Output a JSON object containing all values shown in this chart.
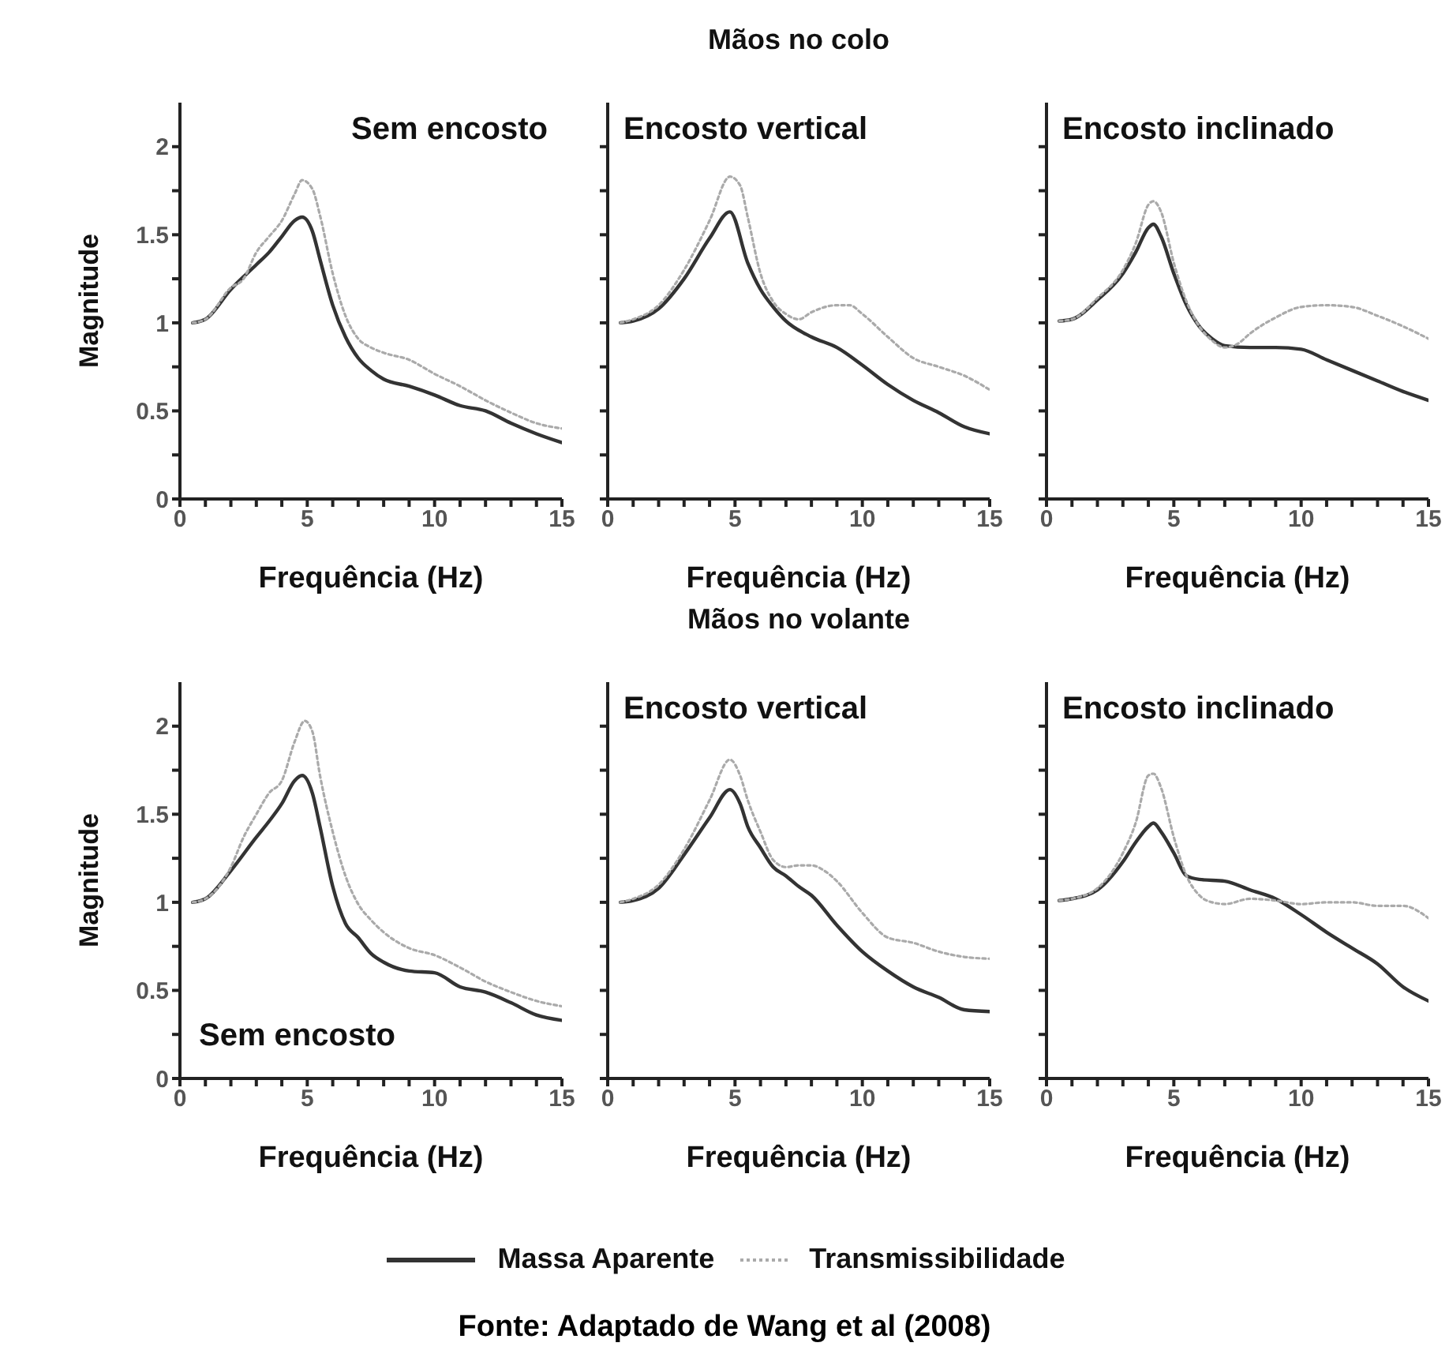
{
  "chart_data": [
    {
      "type": "line",
      "title": "Sem encosto",
      "xlabel": "Frequência (Hz)",
      "ylabel": "Magnitude",
      "xlim": [
        0,
        15
      ],
      "ylim": [
        0,
        2.25
      ],
      "legend": "bottom",
      "xticks": [
        0,
        {
          "value": 1,
          "label": null
        },
        {
          "value": 2,
          "label": null
        },
        {
          "value": 3,
          "label": null
        },
        {
          "value": 4,
          "label": null
        },
        5,
        {
          "value": 6,
          "label": null
        },
        {
          "value": 7,
          "label": null
        },
        {
          "value": 8,
          "label": null
        },
        {
          "value": 9,
          "label": null
        },
        10,
        {
          "value": 11,
          "label": null
        },
        {
          "value": 12,
          "label": null
        },
        {
          "value": 13,
          "label": null
        },
        {
          "value": 14,
          "label": null
        },
        15
      ],
      "yticks": [
        0,
        {
          "value": 0.25,
          "label": null
        },
        0.5,
        {
          "value": 0.75,
          "label": null
        },
        1,
        {
          "value": 1.25,
          "label": null
        },
        1.5,
        {
          "value": 1.75,
          "label": null
        },
        2
      ],
      "series": [
        {
          "name": "Massa Aparente",
          "color": "#333333",
          "line_style": "solid",
          "x": [
            0.5,
            1,
            2,
            3,
            3.5,
            4,
            4.5,
            4.8,
            5.2,
            5.5,
            6,
            6.5,
            7,
            7.5,
            8,
            9,
            10,
            11,
            12,
            13,
            14,
            15
          ],
          "values": [
            1.0,
            1.02,
            1.19,
            1.33,
            1.4,
            1.49,
            1.58,
            1.6,
            1.52,
            1.36,
            1.1,
            0.92,
            0.8,
            0.73,
            0.68,
            0.64,
            0.59,
            0.53,
            0.5,
            0.43,
            0.37,
            0.32
          ]
        },
        {
          "name": "Transmissibilidade",
          "color": "#aaaaaa",
          "line_style": "dotted",
          "x": [
            0.5,
            1,
            2,
            2.5,
            3,
            3.5,
            4,
            4.5,
            4.8,
            5.2,
            5.5,
            6,
            6.5,
            7,
            7.5,
            8,
            9,
            10,
            11,
            12,
            13,
            14,
            15
          ],
          "values": [
            1.0,
            1.02,
            1.2,
            1.25,
            1.4,
            1.49,
            1.58,
            1.73,
            1.81,
            1.76,
            1.61,
            1.28,
            1.04,
            0.91,
            0.86,
            0.83,
            0.79,
            0.71,
            0.64,
            0.56,
            0.49,
            0.43,
            0.4
          ]
        }
      ]
    },
    {
      "type": "line",
      "title": "Encosto vertical",
      "subtitle": "Mãos no colo",
      "xlabel": "Frequência (Hz)",
      "xlim": [
        0,
        15
      ],
      "ylim": [
        0,
        2.25
      ],
      "tick_labels": "x",
      "xticks": [
        0,
        {
          "value": 1,
          "label": null
        },
        {
          "value": 2,
          "label": null
        },
        {
          "value": 3,
          "label": null
        },
        {
          "value": 4,
          "label": null
        },
        5,
        {
          "value": 6,
          "label": null
        },
        {
          "value": 7,
          "label": null
        },
        {
          "value": 8,
          "label": null
        },
        {
          "value": 9,
          "label": null
        },
        10,
        {
          "value": 11,
          "label": null
        },
        {
          "value": 12,
          "label": null
        },
        {
          "value": 13,
          "label": null
        },
        {
          "value": 14,
          "label": null
        },
        15
      ],
      "yticks": [
        0,
        {
          "value": 0.25,
          "label": null
        },
        0.5,
        {
          "value": 0.75,
          "label": null
        },
        1,
        {
          "value": 1.25,
          "label": null
        },
        1.5,
        {
          "value": 1.75,
          "label": null
        },
        2
      ],
      "series": [
        {
          "color": "#333333",
          "line_style": "solid",
          "x": [
            0.5,
            1,
            2,
            3,
            4,
            4.8,
            5.5,
            6,
            6.5,
            7,
            8,
            9,
            10,
            11,
            12,
            13,
            14,
            15
          ],
          "values": [
            1.0,
            1.01,
            1.08,
            1.25,
            1.48,
            1.63,
            1.34,
            1.19,
            1.09,
            1.01,
            0.92,
            0.86,
            0.76,
            0.65,
            0.56,
            0.49,
            0.41,
            0.37
          ]
        },
        {
          "color": "#aaaaaa",
          "line_style": "dotted",
          "x": [
            0.5,
            1,
            2,
            3,
            4,
            4.8,
            5.2,
            5.5,
            6,
            6.5,
            7,
            7.5,
            8,
            9,
            9.5,
            10,
            11,
            12,
            13,
            14,
            15
          ],
          "values": [
            1.0,
            1.02,
            1.1,
            1.3,
            1.58,
            1.83,
            1.78,
            1.6,
            1.28,
            1.12,
            1.05,
            1.02,
            1.06,
            1.1,
            1.1,
            1.05,
            0.92,
            0.8,
            0.75,
            0.7,
            0.62
          ]
        }
      ]
    },
    {
      "type": "line",
      "title": "Encosto inclinado",
      "xlabel": "Frequência (Hz)",
      "xlim": [
        0,
        15
      ],
      "ylim": [
        0,
        2.25
      ],
      "tick_labels": "x",
      "xticks": [
        0,
        {
          "value": 1,
          "label": null
        },
        {
          "value": 2,
          "label": null
        },
        {
          "value": 3,
          "label": null
        },
        {
          "value": 4,
          "label": null
        },
        5,
        {
          "value": 6,
          "label": null
        },
        {
          "value": 7,
          "label": null
        },
        {
          "value": 8,
          "label": null
        },
        {
          "value": 9,
          "label": null
        },
        10,
        {
          "value": 11,
          "label": null
        },
        {
          "value": 12,
          "label": null
        },
        {
          "value": 13,
          "label": null
        },
        {
          "value": 14,
          "label": null
        },
        15
      ],
      "yticks": [
        0,
        {
          "value": 0.25,
          "label": null
        },
        0.5,
        {
          "value": 0.75,
          "label": null
        },
        1,
        {
          "value": 1.25,
          "label": null
        },
        1.5,
        {
          "value": 1.75,
          "label": null
        },
        2
      ],
      "series": [
        {
          "color": "#333333",
          "line_style": "solid",
          "x": [
            0.5,
            1,
            2,
            3,
            3.5,
            4,
            4.2,
            4.5,
            5,
            5.5,
            6,
            6.5,
            7,
            8,
            9,
            10,
            11,
            12,
            13,
            14,
            15
          ],
          "values": [
            1.01,
            1.02,
            1.13,
            1.28,
            1.4,
            1.54,
            1.56,
            1.49,
            1.28,
            1.1,
            0.98,
            0.91,
            0.87,
            0.86,
            0.86,
            0.85,
            0.79,
            0.73,
            0.67,
            0.61,
            0.56
          ]
        },
        {
          "color": "#aaaaaa",
          "line_style": "dotted",
          "x": [
            0.5,
            1,
            2,
            3,
            3.5,
            4,
            4.2,
            4.5,
            5,
            5.5,
            6,
            6.5,
            7,
            7.5,
            8,
            9,
            10,
            11,
            12,
            13,
            14,
            15
          ],
          "values": [
            1.01,
            1.02,
            1.14,
            1.3,
            1.45,
            1.67,
            1.69,
            1.63,
            1.34,
            1.12,
            0.98,
            0.9,
            0.86,
            0.88,
            0.94,
            1.03,
            1.09,
            1.1,
            1.09,
            1.04,
            0.98,
            0.91
          ]
        }
      ]
    },
    {
      "type": "line",
      "title": "Sem encosto",
      "xlabel": "Frequência (Hz)",
      "ylabel": "Magnitude",
      "xlim": [
        0,
        15
      ],
      "ylim": [
        0,
        2.25
      ],
      "xticks": [
        0,
        {
          "value": 1,
          "label": null
        },
        {
          "value": 2,
          "label": null
        },
        {
          "value": 3,
          "label": null
        },
        {
          "value": 4,
          "label": null
        },
        5,
        {
          "value": 6,
          "label": null
        },
        {
          "value": 7,
          "label": null
        },
        {
          "value": 8,
          "label": null
        },
        {
          "value": 9,
          "label": null
        },
        10,
        {
          "value": 11,
          "label": null
        },
        {
          "value": 12,
          "label": null
        },
        {
          "value": 13,
          "label": null
        },
        {
          "value": 14,
          "label": null
        },
        15
      ],
      "yticks": [
        0,
        {
          "value": 0.25,
          "label": null
        },
        0.5,
        {
          "value": 0.75,
          "label": null
        },
        1,
        {
          "value": 1.25,
          "label": null
        },
        1.5,
        {
          "value": 1.75,
          "label": null
        },
        2
      ],
      "series": [
        {
          "color": "#333333",
          "line_style": "solid",
          "x": [
            0.5,
            1,
            2,
            3,
            3.5,
            4,
            4.5,
            4.8,
            5.2,
            5.5,
            6,
            6.5,
            7,
            7.5,
            8,
            9,
            10,
            11,
            12,
            13,
            14,
            15
          ],
          "values": [
            1.0,
            1.02,
            1.18,
            1.37,
            1.46,
            1.56,
            1.69,
            1.72,
            1.62,
            1.43,
            1.09,
            0.88,
            0.8,
            0.71,
            0.66,
            0.61,
            0.6,
            0.52,
            0.49,
            0.43,
            0.36,
            0.33
          ]
        },
        {
          "color": "#aaaaaa",
          "line_style": "dotted",
          "x": [
            0.5,
            1,
            2,
            2.5,
            3,
            3.5,
            4,
            4.5,
            4.9,
            5.2,
            5.5,
            6,
            6.5,
            7,
            7.5,
            8,
            9,
            10,
            11,
            12,
            13,
            14,
            15
          ],
          "values": [
            1.0,
            1.02,
            1.2,
            1.37,
            1.5,
            1.62,
            1.69,
            1.91,
            2.03,
            1.97,
            1.72,
            1.4,
            1.15,
            0.99,
            0.9,
            0.83,
            0.74,
            0.7,
            0.63,
            0.55,
            0.49,
            0.44,
            0.41
          ]
        }
      ]
    },
    {
      "type": "line",
      "title": "Encosto vertical",
      "subtitle": "Mãos no volante",
      "xlabel": "Frequência (Hz)",
      "xlim": [
        0,
        15
      ],
      "ylim": [
        0,
        2.25
      ],
      "tick_labels": "x",
      "xticks": [
        0,
        {
          "value": 1,
          "label": null
        },
        {
          "value": 2,
          "label": null
        },
        {
          "value": 3,
          "label": null
        },
        {
          "value": 4,
          "label": null
        },
        5,
        {
          "value": 6,
          "label": null
        },
        {
          "value": 7,
          "label": null
        },
        {
          "value": 8,
          "label": null
        },
        {
          "value": 9,
          "label": null
        },
        10,
        {
          "value": 11,
          "label": null
        },
        {
          "value": 12,
          "label": null
        },
        {
          "value": 13,
          "label": null
        },
        {
          "value": 14,
          "label": null
        },
        15
      ],
      "yticks": [
        0,
        {
          "value": 0.25,
          "label": null
        },
        0.5,
        {
          "value": 0.75,
          "label": null
        },
        1,
        {
          "value": 1.25,
          "label": null
        },
        1.5,
        {
          "value": 1.75,
          "label": null
        },
        2
      ],
      "series": [
        {
          "color": "#333333",
          "line_style": "solid",
          "x": [
            0.5,
            1,
            2,
            3,
            4,
            4.8,
            5.2,
            5.5,
            6,
            6.5,
            7,
            7.5,
            8,
            9,
            10,
            11,
            12,
            13,
            14,
            15
          ],
          "values": [
            1.0,
            1.01,
            1.08,
            1.27,
            1.48,
            1.64,
            1.56,
            1.43,
            1.31,
            1.2,
            1.15,
            1.09,
            1.04,
            0.87,
            0.72,
            0.61,
            0.52,
            0.46,
            0.39,
            0.38
          ]
        },
        {
          "color": "#aaaaaa",
          "line_style": "dotted",
          "x": [
            0.5,
            1,
            2,
            3,
            4,
            4.8,
            5.2,
            5.5,
            6,
            6.5,
            7,
            7.5,
            8,
            8.5,
            9,
            10,
            11,
            12,
            13,
            14,
            15
          ],
          "values": [
            1.0,
            1.02,
            1.1,
            1.3,
            1.58,
            1.81,
            1.72,
            1.58,
            1.4,
            1.24,
            1.2,
            1.21,
            1.21,
            1.18,
            1.12,
            0.94,
            0.8,
            0.77,
            0.72,
            0.69,
            0.68
          ]
        }
      ]
    },
    {
      "type": "line",
      "title": "Encosto inclinado",
      "xlabel": "Frequência (Hz)",
      "xlim": [
        0,
        15
      ],
      "ylim": [
        0,
        2.25
      ],
      "tick_labels": "x",
      "annotations": [
        "Fonte: Adaptado de Wang et al (2008)"
      ],
      "xticks": [
        0,
        {
          "value": 1,
          "label": null
        },
        {
          "value": 2,
          "label": null
        },
        {
          "value": 3,
          "label": null
        },
        {
          "value": 4,
          "label": null
        },
        5,
        {
          "value": 6,
          "label": null
        },
        {
          "value": 7,
          "label": null
        },
        {
          "value": 8,
          "label": null
        },
        {
          "value": 9,
          "label": null
        },
        10,
        {
          "value": 11,
          "label": null
        },
        {
          "value": 12,
          "label": null
        },
        {
          "value": 13,
          "label": null
        },
        {
          "value": 14,
          "label": null
        },
        15
      ],
      "yticks": [
        0,
        {
          "value": 0.25,
          "label": null
        },
        0.5,
        {
          "value": 0.75,
          "label": null
        },
        1,
        {
          "value": 1.25,
          "label": null
        },
        1.5,
        {
          "value": 1.75,
          "label": null
        },
        2
      ],
      "series": [
        {
          "color": "#333333",
          "line_style": "solid",
          "x": [
            0.5,
            1,
            2,
            3,
            3.5,
            4,
            4.2,
            4.5,
            5,
            5.5,
            6,
            7,
            8,
            9,
            10,
            11,
            12,
            13,
            14,
            15
          ],
          "values": [
            1.01,
            1.02,
            1.07,
            1.23,
            1.34,
            1.43,
            1.45,
            1.4,
            1.28,
            1.15,
            1.13,
            1.12,
            1.07,
            1.02,
            0.93,
            0.83,
            0.74,
            0.65,
            0.52,
            0.44
          ]
        },
        {
          "color": "#aaaaaa",
          "line_style": "dotted",
          "x": [
            0.5,
            1,
            2,
            3,
            3.5,
            4,
            4.2,
            4.5,
            5,
            5.5,
            6,
            6.5,
            7,
            8,
            9,
            10,
            11,
            12,
            13,
            14,
            15
          ],
          "values": [
            1.01,
            1.02,
            1.08,
            1.28,
            1.45,
            1.72,
            1.73,
            1.65,
            1.37,
            1.15,
            1.04,
            1.0,
            0.99,
            1.02,
            1.01,
            0.99,
            1.0,
            1.0,
            0.98,
            0.98,
            0.91
          ]
        }
      ]
    }
  ]
}
